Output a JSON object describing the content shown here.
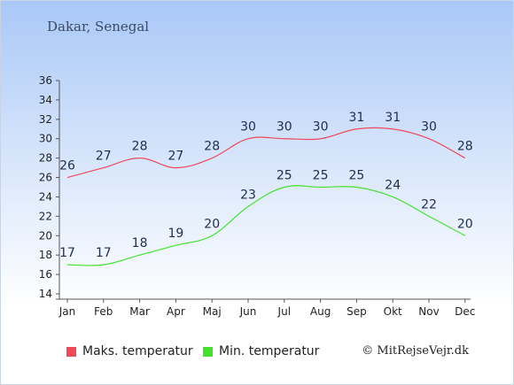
{
  "header": {
    "title": "Dakar, Senegal"
  },
  "chart_data": {
    "type": "line",
    "categories": [
      "Jan",
      "Feb",
      "Mar",
      "Apr",
      "Maj",
      "Jun",
      "Jul",
      "Aug",
      "Sep",
      "Okt",
      "Nov",
      "Dec"
    ],
    "ylim": [
      14,
      36
    ],
    "yticks": [
      14,
      16,
      18,
      20,
      22,
      24,
      26,
      28,
      30,
      32,
      34,
      36
    ],
    "grid": false,
    "legend_position": "bottom",
    "series": [
      {
        "name": "Maks. temperatur",
        "color": "#f04a5a",
        "values": [
          26,
          27,
          28,
          27,
          28,
          30,
          30,
          30,
          31,
          31,
          30,
          28
        ]
      },
      {
        "name": "Min. temperatur",
        "color": "#44e22c",
        "values": [
          17,
          17,
          18,
          19,
          20,
          23,
          25,
          25,
          25,
          24,
          22,
          20
        ]
      }
    ]
  },
  "footer": {
    "credit": "© MitRejseVejr.dk"
  }
}
